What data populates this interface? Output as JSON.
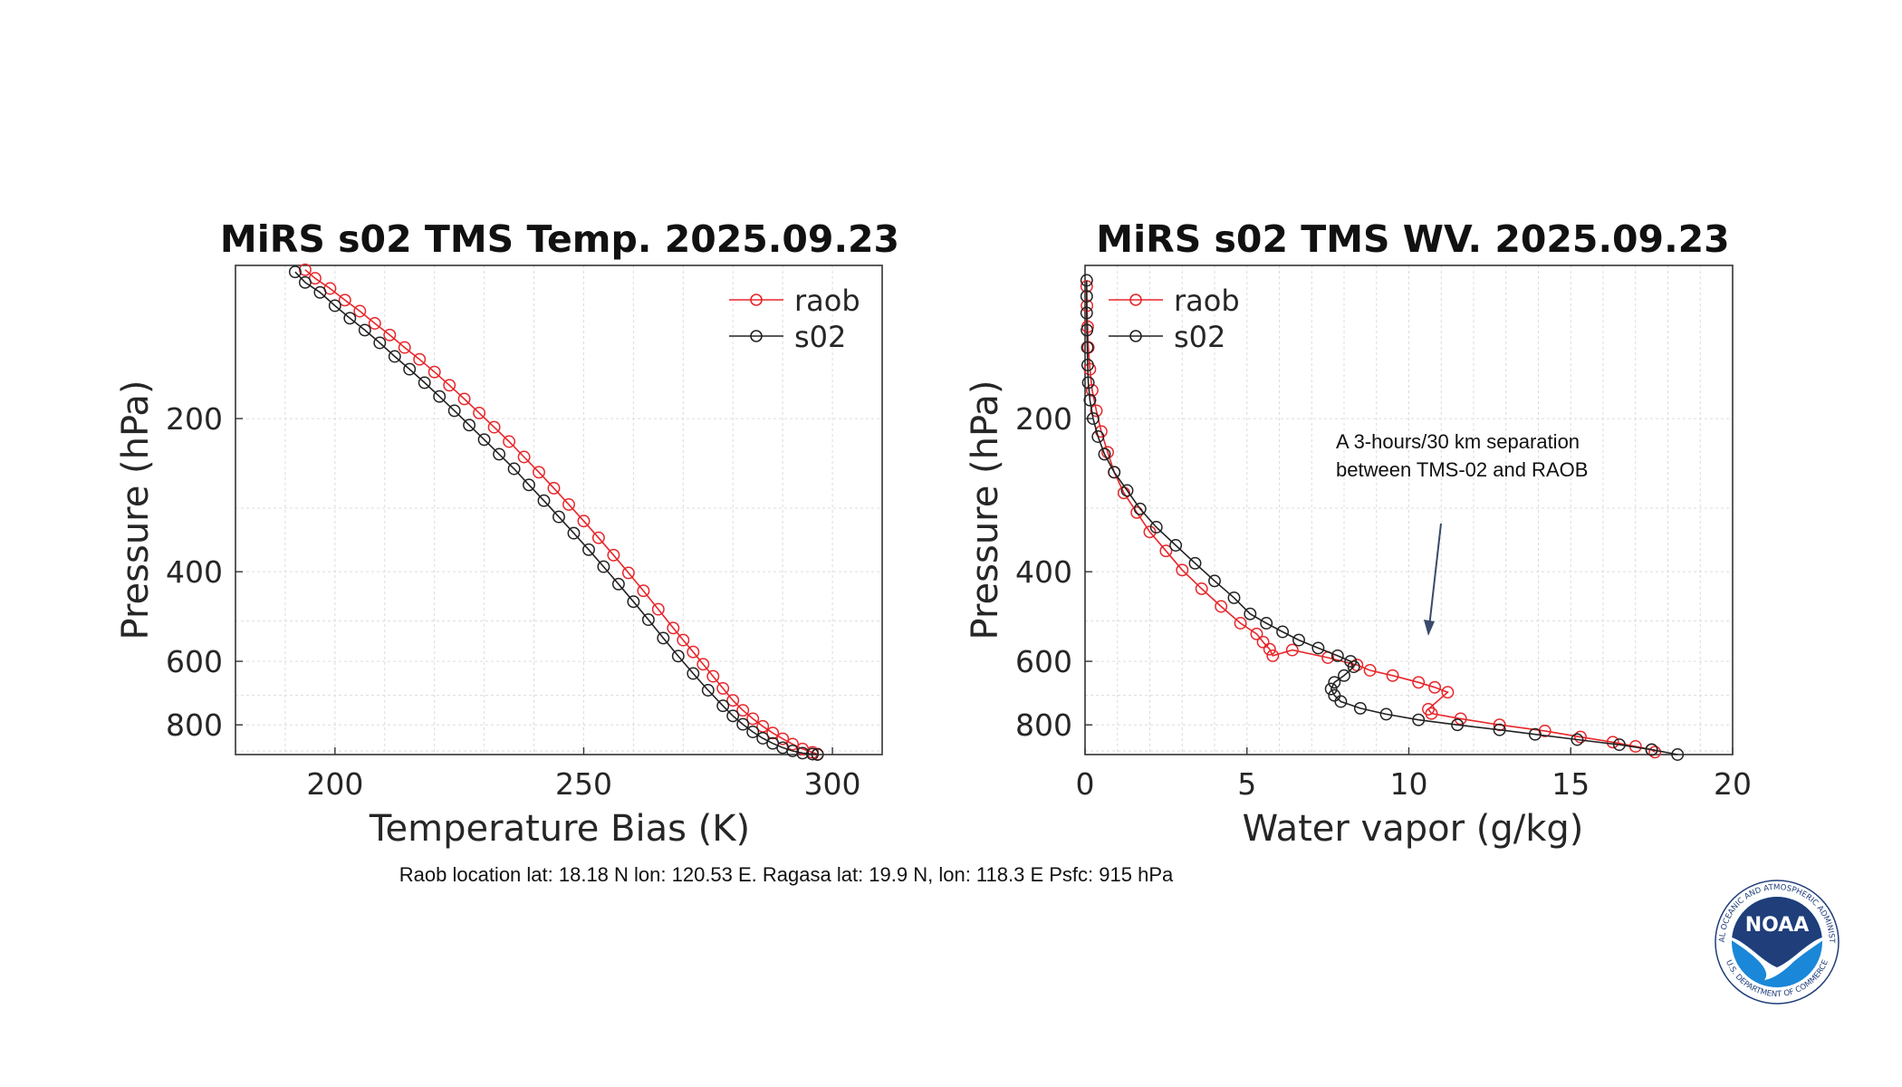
{
  "caption": "Raob location lat: 18.18 N lon: 120.53 E.  Ragasa lat:  19.9 N, lon: 118.3 E Psfc: 915 hPa",
  "annotation": {
    "line1": "A 3-hours/30 km  separation",
    "line2": "between TMS-02 and RAOB"
  },
  "logo": {
    "text": "NOAA",
    "ring_top": "NATIONAL OCEANIC AND ATMOSPHERIC ADMINISTRATION",
    "ring_bottom": "U.S. DEPARTMENT OF COMMERCE"
  },
  "colors": {
    "raob": "#e8262a",
    "s02": "#222222",
    "noaa_blue": "#1f3e7a",
    "noaa_sky": "#1b87d8"
  },
  "chart_data": [
    {
      "type": "line",
      "title": "MiRS s02 TMS Temp. 2025.09.23",
      "xlabel": "Temperature Bias (K)",
      "ylabel": "Pressure (hPa)",
      "xlim": [
        180,
        310
      ],
      "ylim": [
        100,
        915
      ],
      "yscale": "log",
      "xticks": [
        200,
        250,
        300
      ],
      "yticks": [
        200,
        400,
        600,
        800
      ],
      "legend_position": "top-right",
      "series": [
        {
          "name": "raob",
          "x": [
            194,
            196,
            199,
            202,
            205,
            208,
            211,
            214,
            217,
            220,
            223,
            226,
            229,
            232,
            235,
            238,
            241,
            244,
            247,
            250,
            253,
            256,
            259,
            262,
            265,
            268,
            270,
            272,
            274,
            276,
            278,
            280,
            282,
            284,
            286,
            288,
            290,
            292,
            294,
            296,
            297
          ],
          "y": [
            102,
            106,
            111,
            117,
            123,
            130,
            137,
            145,
            153,
            162,
            172,
            183,
            195,
            208,
            222,
            238,
            255,
            274,
            295,
            318,
            343,
            371,
            402,
            436,
            474,
            516,
            545,
            575,
            608,
            642,
            678,
            716,
            749,
            778,
            805,
            830,
            852,
            873,
            892,
            906,
            913
          ]
        },
        {
          "name": "s02",
          "x": [
            192,
            194,
            197,
            200,
            203,
            206,
            209,
            212,
            215,
            218,
            221,
            224,
            227,
            230,
            233,
            236,
            239,
            242,
            245,
            248,
            251,
            254,
            257,
            260,
            263,
            266,
            269,
            272,
            275,
            278,
            280,
            282,
            284,
            286,
            288,
            290,
            292,
            294,
            296,
            297
          ],
          "y": [
            103,
            108,
            113,
            120,
            127,
            134,
            142,
            151,
            160,
            170,
            181,
            193,
            206,
            220,
            235,
            251,
            270,
            290,
            312,
            336,
            362,
            391,
            423,
            458,
            497,
            540,
            586,
            634,
            684,
            734,
            768,
            798,
            826,
            850,
            870,
            887,
            900,
            909,
            913,
            915
          ]
        }
      ]
    },
    {
      "type": "line",
      "title": "MiRS s02 TMS WV. 2025.09.23",
      "xlabel": "Water vapor (g/kg)",
      "ylabel": "Pressure (hPa)",
      "xlim": [
        0,
        20
      ],
      "ylim": [
        100,
        915
      ],
      "yscale": "log",
      "xticks": [
        0,
        5,
        10,
        15,
        20
      ],
      "yticks": [
        200,
        400,
        600,
        800
      ],
      "legend_position": "top-left",
      "series": [
        {
          "name": "raob",
          "x": [
            0.05,
            0.06,
            0.08,
            0.1,
            0.15,
            0.22,
            0.35,
            0.5,
            0.7,
            0.9,
            1.2,
            1.6,
            2.0,
            2.5,
            3.0,
            3.6,
            4.2,
            4.8,
            5.3,
            5.5,
            5.7,
            5.8,
            6.4,
            7.5,
            8.4,
            8.8,
            9.5,
            10.3,
            10.8,
            11.2,
            10.6,
            10.7,
            11.6,
            12.8,
            14.2,
            15.3,
            16.3,
            17.0,
            17.5,
            17.6
          ],
          "y": [
            110,
            120,
            132,
            145,
            160,
            176,
            193,
            212,
            233,
            255,
            280,
            306,
            334,
            364,
            397,
            432,
            468,
            505,
            530,
            550,
            568,
            585,
            570,
            590,
            610,
            625,
            640,
            660,
            675,
            690,
            745,
            760,
            778,
            800,
            822,
            845,
            865,
            882,
            895,
            905
          ]
        },
        {
          "name": "s02",
          "x": [
            0.05,
            0.05,
            0.05,
            0.06,
            0.07,
            0.08,
            0.1,
            0.15,
            0.25,
            0.4,
            0.6,
            0.9,
            1.3,
            1.7,
            2.2,
            2.8,
            3.4,
            4.0,
            4.6,
            5.1,
            5.6,
            6.1,
            6.6,
            7.2,
            7.8,
            8.2,
            8.3,
            8.0,
            7.7,
            7.6,
            7.7,
            7.9,
            8.5,
            9.3,
            10.3,
            11.5,
            12.8,
            13.9,
            15.2,
            16.5,
            17.5,
            18.3
          ],
          "y": [
            107,
            115,
            124,
            134,
            145,
            157,
            170,
            184,
            200,
            217,
            235,
            255,
            277,
            301,
            327,
            355,
            385,
            417,
            450,
            484,
            505,
            525,
            545,
            565,
            585,
            600,
            615,
            640,
            660,
            680,
            700,
            720,
            742,
            762,
            782,
            800,
            818,
            835,
            855,
            875,
            895,
            915
          ]
        }
      ]
    }
  ]
}
